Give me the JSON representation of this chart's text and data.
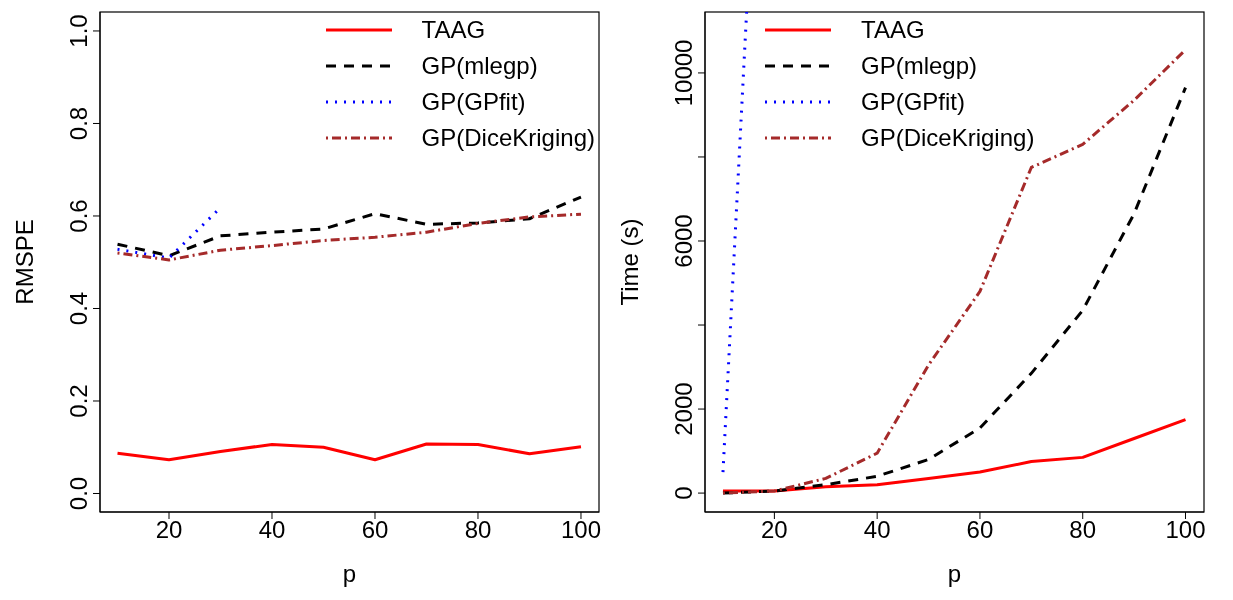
{
  "chart_data": [
    {
      "type": "line",
      "xlabel": "p",
      "ylabel": "RMSPE",
      "x": [
        10,
        20,
        30,
        40,
        50,
        60,
        70,
        80,
        90,
        100
      ],
      "xlim": [
        6.6,
        103.5
      ],
      "xticks": [
        20,
        40,
        60,
        80,
        100
      ],
      "ylim": [
        -0.04,
        1.041
      ],
      "yticks": [
        {
          "value": 0,
          "label": "0.0"
        },
        0.2,
        0.4,
        0.6,
        0.8,
        {
          "value": 1,
          "label": "1.0"
        }
      ],
      "grid": false,
      "legend": "top right",
      "marker": "none",
      "series": [
        {
          "name": "TAAG",
          "color": "#ff0000",
          "line_style": "solid",
          "values": [
            0.087,
            0.073,
            0.091,
            0.106,
            0.1,
            0.073,
            0.107,
            0.106,
            0.086,
            0.101
          ]
        },
        {
          "name": "GP(mlegp)",
          "color": "#000000",
          "line_style": "dashed",
          "values": [
            0.539,
            0.514,
            0.557,
            0.565,
            0.572,
            0.605,
            0.582,
            0.585,
            0.594,
            0.641
          ]
        },
        {
          "name": "GP(GPfit)",
          "color": "#0000ff",
          "line_style": "dotted",
          "values": [
            0.528,
            0.509,
            0.618,
            null,
            null,
            null,
            null,
            null,
            null,
            null
          ]
        },
        {
          "name": "GP(DiceKriging)",
          "color": "#a52a2a",
          "line_style": "dashdot",
          "values": [
            0.52,
            0.505,
            0.526,
            0.536,
            0.547,
            0.554,
            0.565,
            0.584,
            0.598,
            0.604
          ]
        }
      ]
    },
    {
      "type": "line",
      "xlabel": "p",
      "ylabel": "Time (s)",
      "x": [
        10,
        20,
        30,
        40,
        50,
        60,
        70,
        80,
        90,
        100
      ],
      "xlim": [
        6.5,
        103.6
      ],
      "xticks": [
        20,
        40,
        60,
        80,
        100
      ],
      "ylim": [
        -450,
        11450
      ],
      "yticks": [
        0,
        2000,
        {
          "value": 4000,
          "label": null
        },
        6000,
        {
          "value": 8000,
          "label": null
        },
        10000
      ],
      "grid": false,
      "legend": "top",
      "marker": "none",
      "series": [
        {
          "name": "TAAG",
          "color": "#ff0000",
          "line_style": "solid",
          "values": [
            50,
            50,
            150,
            200,
            350,
            500,
            750,
            850,
            1300,
            1750
          ]
        },
        {
          "name": "GP(mlegp)",
          "color": "#000000",
          "line_style": "dashed",
          "values": [
            0,
            50,
            200,
            400,
            800,
            1550,
            2850,
            4350,
            6650,
            9650
          ]
        },
        {
          "name": "GP(GPfit)",
          "color": "#0000ff",
          "line_style": "dotted",
          "x": [
            10,
            14.6
          ],
          "values": [
            500,
            11450
          ]
        },
        {
          "name": "GP(DiceKriging)",
          "color": "#a52a2a",
          "line_style": "dashdot",
          "values": [
            0,
            50,
            350,
            950,
            3050,
            4800,
            7750,
            8300,
            9350,
            10550
          ]
        }
      ]
    }
  ]
}
